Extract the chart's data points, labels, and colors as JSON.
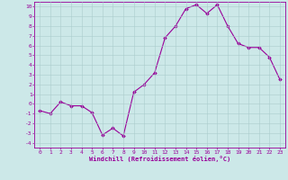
{
  "x": [
    0,
    1,
    2,
    3,
    4,
    5,
    6,
    7,
    8,
    9,
    10,
    11,
    12,
    13,
    14,
    15,
    16,
    17,
    18,
    19,
    20,
    21,
    22,
    23
  ],
  "y": [
    -0.7,
    -1.0,
    0.2,
    -0.2,
    -0.2,
    -0.9,
    -3.2,
    -2.5,
    -3.3,
    1.2,
    2.0,
    3.2,
    6.8,
    8.0,
    9.8,
    10.2,
    9.3,
    10.2,
    8.0,
    6.2,
    5.8,
    5.8,
    4.8,
    2.5
  ],
  "xlabel": "Windchill (Refroidissement éolien,°C)",
  "xlim": [
    -0.5,
    23.5
  ],
  "ylim": [
    -4.5,
    10.5
  ],
  "yticks": [
    -4,
    -3,
    -2,
    -1,
    0,
    1,
    2,
    3,
    4,
    5,
    6,
    7,
    8,
    9,
    10
  ],
  "xticks": [
    0,
    1,
    2,
    3,
    4,
    5,
    6,
    7,
    8,
    9,
    10,
    11,
    12,
    13,
    14,
    15,
    16,
    17,
    18,
    19,
    20,
    21,
    22,
    23
  ],
  "line_color": "#990099",
  "marker": "D",
  "marker_size": 1.8,
  "bg_color": "#cce8e8",
  "grid_color": "#aacccc",
  "font_color": "#990099",
  "tick_fontsize": 4.5,
  "xlabel_fontsize": 5.0
}
